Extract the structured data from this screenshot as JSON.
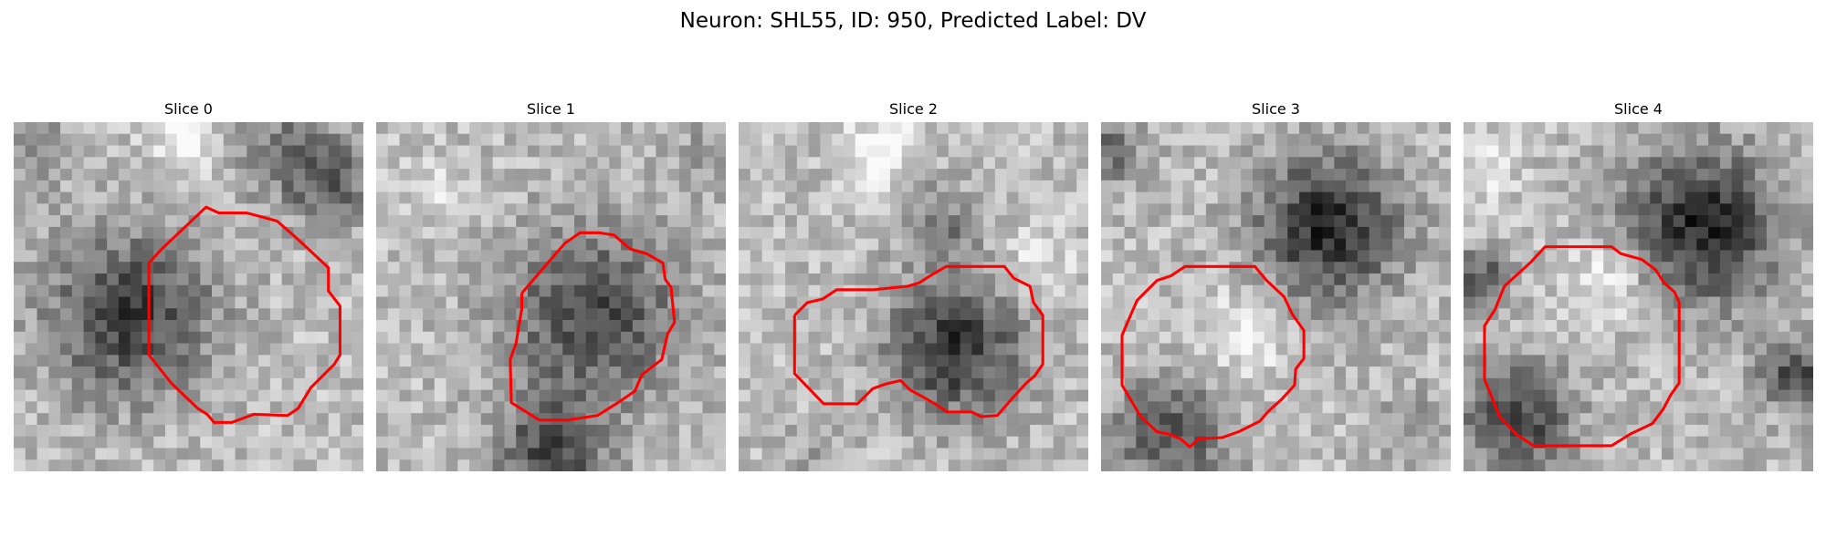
{
  "figure": {
    "title": "Neuron: SHL55, ID: 950, Predicted Label: DV"
  },
  "contour_color": "#ff0000",
  "panels": [
    {
      "title": "Slice 0"
    },
    {
      "title": "Slice 1"
    },
    {
      "title": "Slice 2"
    },
    {
      "title": "Slice 3"
    },
    {
      "title": "Slice 4"
    }
  ]
}
